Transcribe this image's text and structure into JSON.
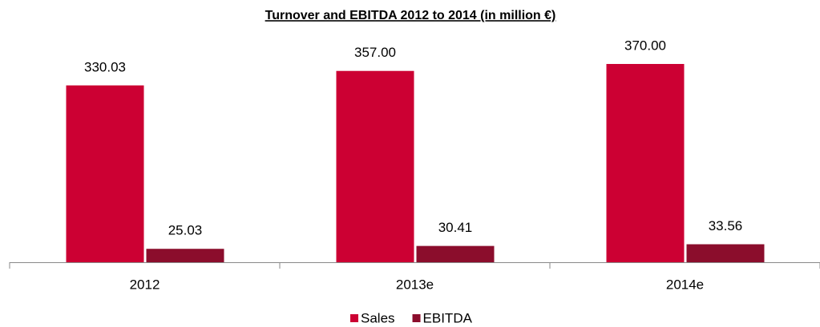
{
  "chart_data": {
    "type": "bar",
    "title": "Turnover and EBITDA 2012 to 2014 (in million €)",
    "categories": [
      "2012",
      "2013e",
      "2014e"
    ],
    "series": [
      {
        "name": "Sales",
        "color": "#cc0033",
        "values": [
          330.03,
          357,
          370
        ],
        "value_labels": [
          "330.03",
          "357.00",
          "370.00"
        ]
      },
      {
        "name": "EBITDA",
        "color": "#8b0d2c",
        "values": [
          25.03,
          30.41,
          33.56
        ],
        "value_labels": [
          "25.03",
          "30.41",
          "33.56"
        ]
      }
    ],
    "legend": "bottom"
  }
}
